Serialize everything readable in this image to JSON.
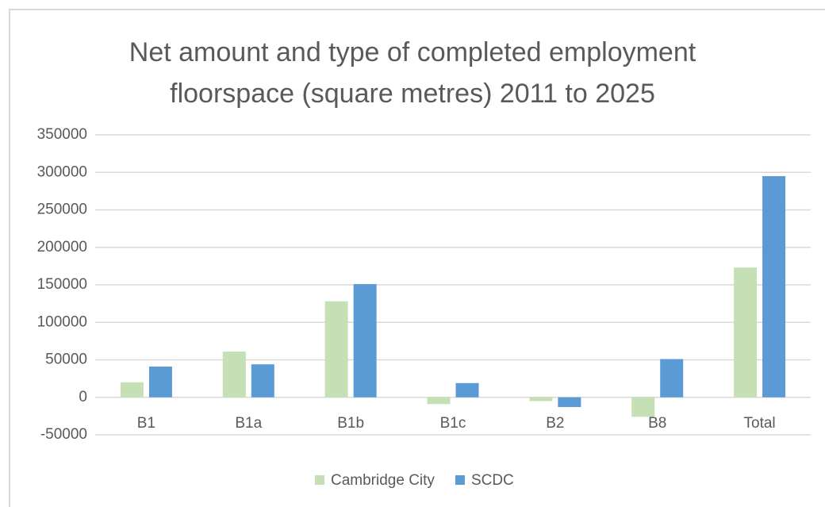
{
  "chart_data": {
    "type": "bar",
    "title": "Net amount and type of completed employment floorspace (square metres) 2011 to 2025",
    "categories": [
      "B1",
      "B1a",
      "B1b",
      "B1c",
      "B2",
      "B8",
      "Total"
    ],
    "series": [
      {
        "name": "Cambridge City",
        "color": "#c5e0b4",
        "values": [
          20000,
          61000,
          128000,
          -9000,
          -5000,
          -26000,
          173000
        ]
      },
      {
        "name": "SCDC",
        "color": "#5b9bd5",
        "values": [
          41000,
          44000,
          151000,
          19000,
          -13000,
          51000,
          295000
        ]
      }
    ],
    "ylim": [
      -50000,
      350000
    ],
    "yticks": [
      -50000,
      0,
      50000,
      100000,
      150000,
      200000,
      250000,
      300000,
      350000
    ],
    "grid": true,
    "legend": "bottom"
  }
}
